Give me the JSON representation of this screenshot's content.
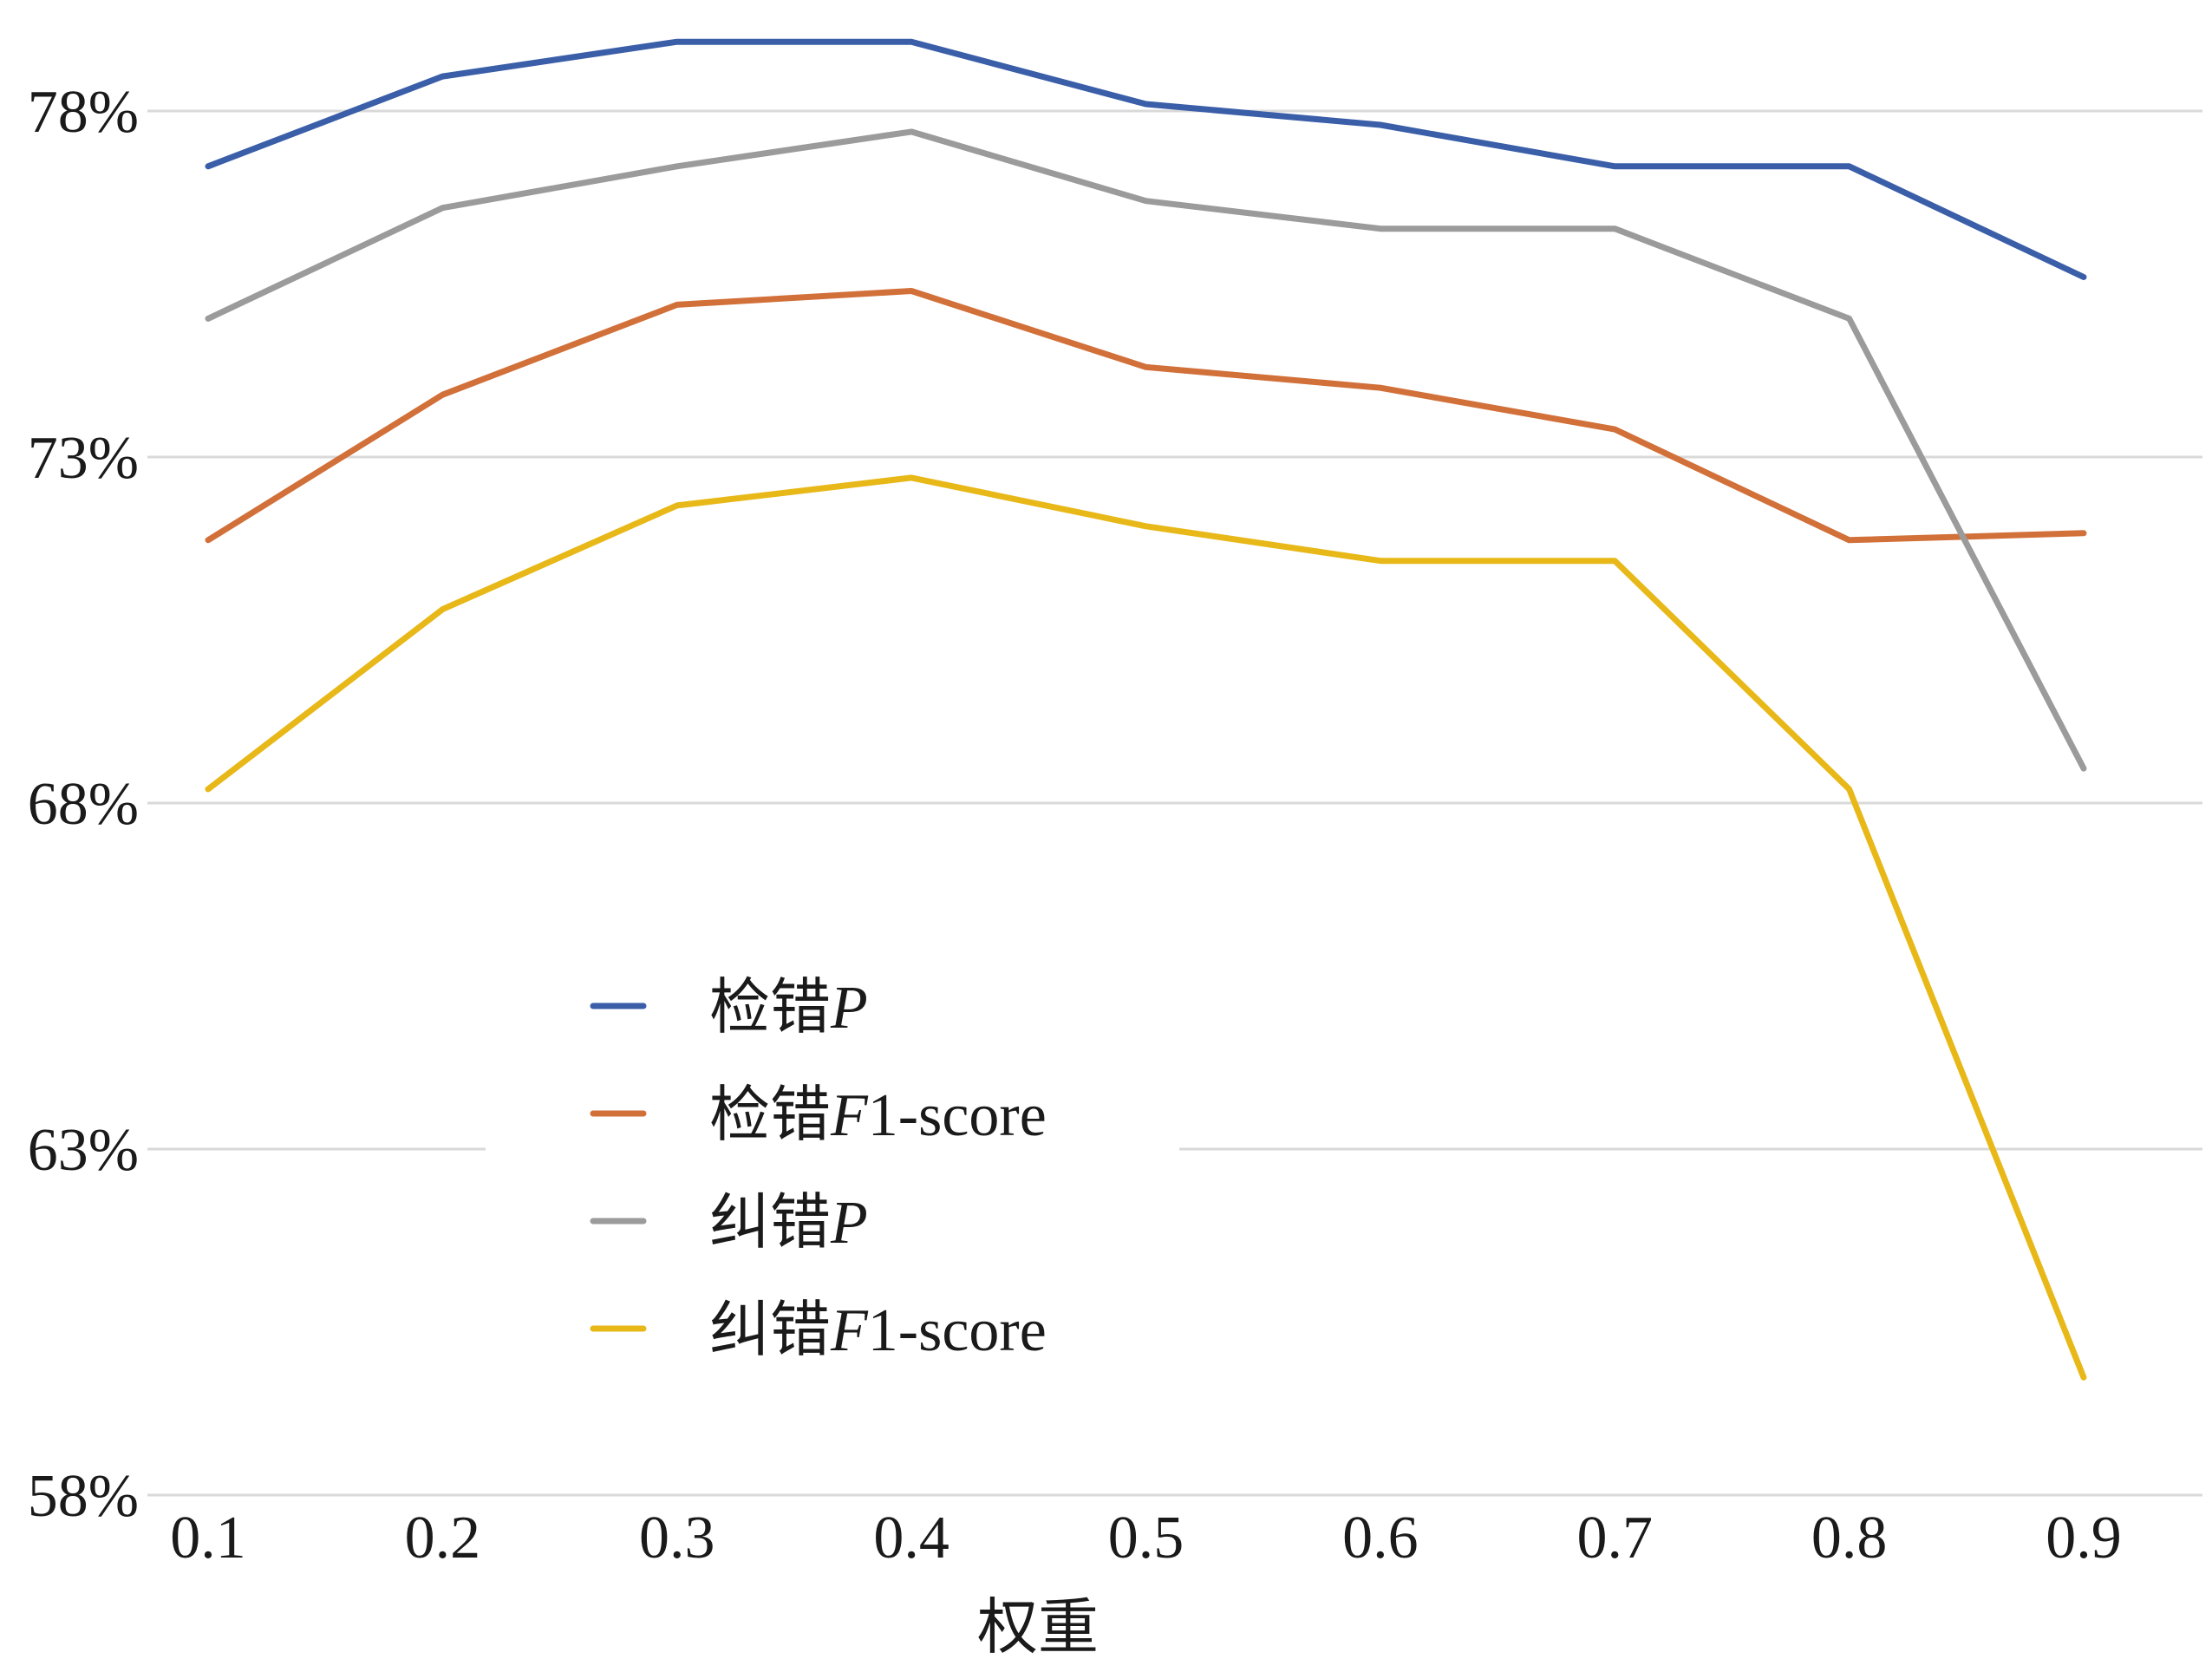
{
  "chart_data": {
    "type": "line",
    "title": "",
    "xlabel": "权重",
    "ylabel": "",
    "x": [
      0.1,
      0.2,
      0.3,
      0.4,
      0.5,
      0.6,
      0.7,
      0.8,
      0.9
    ],
    "x_tick_labels": [
      "0.1",
      "0.2",
      "0.3",
      "0.4",
      "0.5",
      "0.6",
      "0.7",
      "0.8",
      "0.9"
    ],
    "ylim": [
      58,
      80
    ],
    "y_ticks": [
      58,
      63,
      68,
      73,
      78
    ],
    "y_tick_labels": [
      "58%",
      "63%",
      "68%",
      "73%",
      "78%"
    ],
    "grid": "horizontal",
    "legend_position": "center-left",
    "series": [
      {
        "name": "检错P",
        "name_prefix": "检错",
        "name_metric": "P",
        "name_suffix": "",
        "color": "#3a5ea8",
        "values": [
          77.2,
          78.5,
          79.0,
          79.0,
          78.1,
          77.8,
          77.2,
          77.2,
          75.6
        ]
      },
      {
        "name": "检错F1-score",
        "name_prefix": "检错",
        "name_metric": "F",
        "name_suffix": "1-score",
        "color": "#d2703a",
        "values": [
          71.8,
          73.9,
          75.2,
          75.4,
          74.3,
          74.0,
          73.4,
          71.8,
          71.9
        ]
      },
      {
        "name": "纠错P",
        "name_prefix": "纠错",
        "name_metric": "P",
        "name_suffix": "",
        "color": "#9b9b9b",
        "values": [
          75.0,
          76.6,
          77.2,
          77.7,
          76.7,
          76.3,
          76.3,
          75.0,
          68.5
        ]
      },
      {
        "name": "纠错F1-score",
        "name_prefix": "纠错",
        "name_metric": "F",
        "name_suffix": "1-score",
        "color": "#e8b818",
        "values": [
          68.2,
          70.8,
          72.3,
          72.7,
          72.0,
          71.5,
          71.5,
          68.2,
          59.7
        ]
      }
    ]
  }
}
